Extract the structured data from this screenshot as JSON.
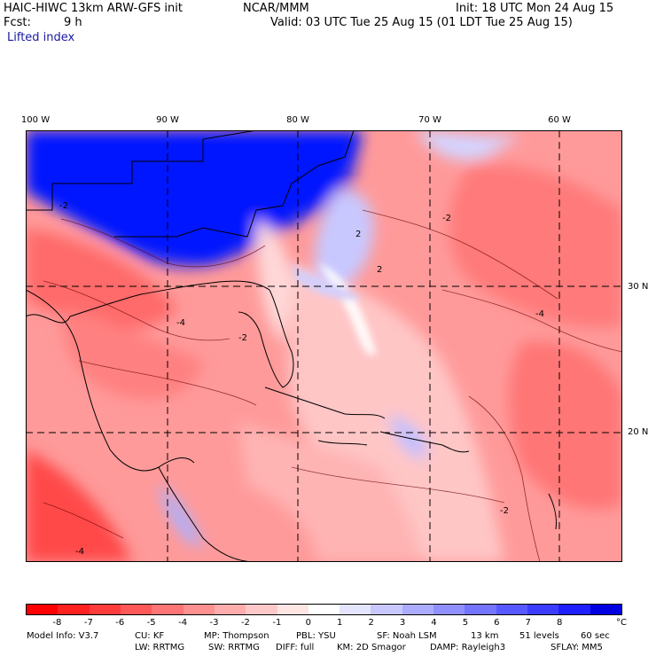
{
  "header": {
    "model": "HAIC-HIWC 13km ARW-GFS init",
    "org": "NCAR/MMM",
    "init": "Init: 18 UTC Mon 24 Aug 15",
    "fcst_label": "Fcst:",
    "fcst_value": "9 h",
    "valid": "Valid: 03 UTC Tue 25 Aug 15 (01 LDT Tue 25 Aug 15)",
    "field": "Lifted index"
  },
  "map": {
    "lon_labels": [
      "100 W",
      "90 W",
      "80 W",
      "70 W",
      "60 W"
    ],
    "lat_labels": [
      "30 N",
      "20 N"
    ],
    "contour_labels": [
      "-2",
      "-4",
      "2"
    ]
  },
  "colorbar": {
    "colors": [
      "#ff0000",
      "#ff2020",
      "#ff3c3c",
      "#ff5858",
      "#ff7474",
      "#ff9090",
      "#ffacac",
      "#ffc8c8",
      "#ffe4e4",
      "#ffffff",
      "#e4e4ff",
      "#c8c8ff",
      "#acacff",
      "#9090ff",
      "#7474ff",
      "#5858ff",
      "#3c3cff",
      "#2020ff",
      "#0000e0"
    ],
    "labels": [
      "-8",
      "-7",
      "-6",
      "-5",
      "-4",
      "-3",
      "-2",
      "-1",
      "0",
      "1",
      "2",
      "3",
      "4",
      "5",
      "6",
      "7",
      "8"
    ],
    "unit": "°C"
  },
  "footer": {
    "model_info": "Model Info: V3.7",
    "cu": "CU: KF",
    "mp": "MP: Thompson",
    "pbl": "PBL: YSU",
    "sf": "SF: Noah LSM",
    "res": "13 km",
    "levels": "51 levels",
    "dt": "60 sec",
    "lw": "LW: RRTMG",
    "sw": "SW: RRTMG",
    "diff": "DIFF: full",
    "km": "KM: 2D Smagor",
    "damp": "DAMP: Rayleigh3",
    "sflay": "SFLAY: MM5"
  }
}
